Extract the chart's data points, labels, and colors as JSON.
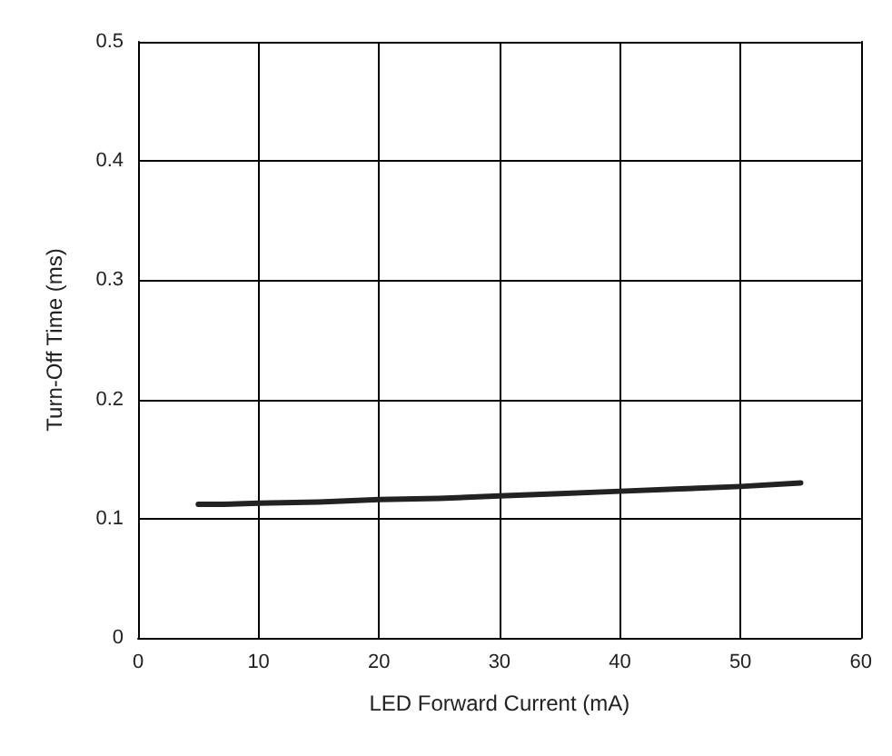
{
  "chart_data": {
    "type": "line",
    "xlabel": "LED Forward Current (mA)",
    "ylabel": "Turn-Off Time (ms)",
    "x": [
      5,
      7,
      10,
      15,
      20,
      25,
      30,
      35,
      40,
      45,
      50,
      55
    ],
    "series": [
      {
        "color": "#222222",
        "values": [
          0.112,
          0.112,
          0.113,
          0.114,
          0.116,
          0.117,
          0.119,
          0.121,
          0.123,
          0.125,
          0.127,
          0.13
        ]
      }
    ],
    "xlim": [
      0,
      60
    ],
    "xticks": [
      0,
      10,
      20,
      30,
      40,
      50,
      60
    ],
    "ylim": [
      0,
      0.5
    ],
    "yticks": [
      0,
      0.1,
      0.2,
      0.3,
      0.4,
      0.5
    ],
    "grid": true,
    "marker": "none",
    "line_style": "solid"
  }
}
